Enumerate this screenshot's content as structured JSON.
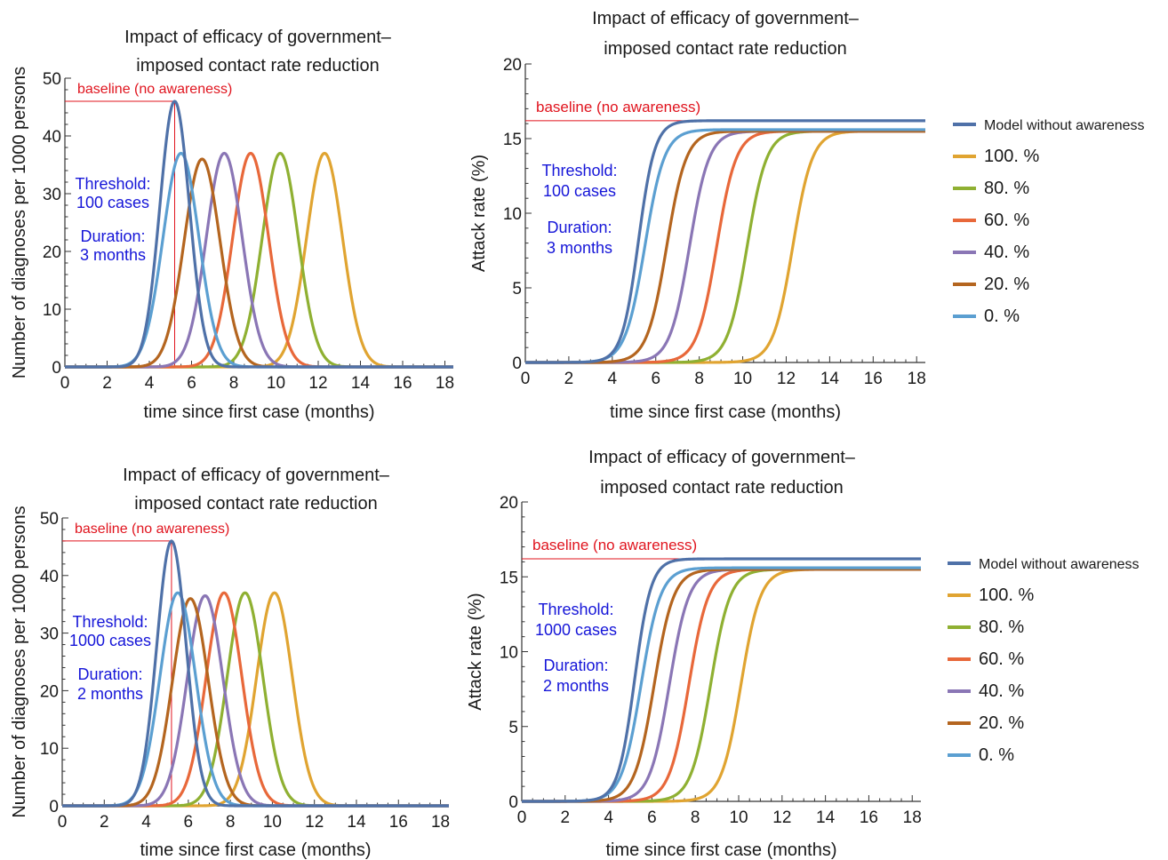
{
  "chart_data": [
    {
      "type": "line",
      "panel": "top-left",
      "title": [
        "Impact of efficacy of government–",
        "imposed contact rate reduction"
      ],
      "xlabel": "time since first case (months)",
      "ylabel": "Number of diagnoses per 1000 persons",
      "xlim": [
        0,
        18.4
      ],
      "ylim": [
        0,
        50
      ],
      "xticks": [
        "0",
        "2",
        "4",
        "6",
        "8",
        "10",
        "12",
        "14",
        "16",
        "18"
      ],
      "yticks": [
        "0",
        "10",
        "20",
        "30",
        "40",
        "50"
      ],
      "threshold_text": [
        "Threshold:",
        "100 cases"
      ],
      "duration_text": [
        "Duration:",
        "3 months"
      ],
      "baseline": {
        "label": "baseline (no awareness)",
        "peak_x": 5.2,
        "peak_y": 46
      },
      "series": [
        {
          "name": "100. %",
          "color": "#e0a431",
          "shape": "bell",
          "peak_x": 12.3,
          "peak_y": 37,
          "width": 0.85
        },
        {
          "name": "80. %",
          "color": "#8fb032",
          "shape": "bell",
          "peak_x": 10.2,
          "peak_y": 37,
          "width": 0.85
        },
        {
          "name": "60. %",
          "color": "#e8683a",
          "shape": "bell",
          "peak_x": 8.8,
          "peak_y": 37,
          "width": 0.85
        },
        {
          "name": "40. %",
          "color": "#8a76b5",
          "shape": "bell",
          "peak_x": 7.55,
          "peak_y": 37,
          "width": 0.85
        },
        {
          "name": "20. %",
          "color": "#b4651f",
          "shape": "bell",
          "peak_x": 6.5,
          "peak_y": 36,
          "width": 0.85
        },
        {
          "name": "0. %",
          "color": "#5b9fd1",
          "shape": "bell",
          "peak_x": 5.5,
          "peak_y": 37,
          "width": 0.85
        },
        {
          "name": "Model without awareness",
          "color": "#4f71a8",
          "shape": "bell",
          "peak_x": 5.2,
          "peak_y": 46,
          "width": 0.7
        }
      ]
    },
    {
      "type": "line",
      "panel": "top-right",
      "title": [
        "Impact of efficacy of government–",
        "imposed contact rate reduction"
      ],
      "xlabel": "time since first case (months)",
      "ylabel": "Attack rate (%)",
      "xlim": [
        0,
        18.4
      ],
      "ylim": [
        0,
        20
      ],
      "xticks": [
        "0",
        "2",
        "4",
        "6",
        "8",
        "10",
        "12",
        "14",
        "16",
        "18"
      ],
      "yticks": [
        "0",
        "5",
        "10",
        "15",
        "20"
      ],
      "threshold_text": [
        "Threshold:",
        "100 cases"
      ],
      "duration_text": [
        "Duration:",
        "3 months"
      ],
      "baseline": {
        "label": "baseline (no awareness)",
        "y": 16.2
      },
      "series": [
        {
          "name": "100. %",
          "color": "#e0a431",
          "shape": "sigmoid",
          "mid_x": 12.3,
          "final": 15.5,
          "scale": 0.45
        },
        {
          "name": "80. %",
          "color": "#8fb032",
          "shape": "sigmoid",
          "mid_x": 10.2,
          "final": 15.5,
          "scale": 0.45
        },
        {
          "name": "60. %",
          "color": "#e8683a",
          "shape": "sigmoid",
          "mid_x": 8.8,
          "final": 15.5,
          "scale": 0.45
        },
        {
          "name": "40. %",
          "color": "#8a76b5",
          "shape": "sigmoid",
          "mid_x": 7.55,
          "final": 15.5,
          "scale": 0.45
        },
        {
          "name": "20. %",
          "color": "#b4651f",
          "shape": "sigmoid",
          "mid_x": 6.5,
          "final": 15.5,
          "scale": 0.45
        },
        {
          "name": "0. %",
          "color": "#5b9fd1",
          "shape": "sigmoid",
          "mid_x": 5.5,
          "final": 15.6,
          "scale": 0.45
        },
        {
          "name": "Model without awareness",
          "color": "#4f71a8",
          "shape": "sigmoid",
          "mid_x": 5.2,
          "final": 16.2,
          "scale": 0.38
        }
      ],
      "legend": [
        "Model without awareness",
        "100. %",
        "80. %",
        "60. %",
        "40. %",
        "20. %",
        "0. %"
      ]
    },
    {
      "type": "line",
      "panel": "bottom-left",
      "title": [
        "Impact of efficacy of government–",
        "imposed contact rate reduction"
      ],
      "xlabel": "time since first case (months)",
      "ylabel": "Number of diagnoses per 1000 persons",
      "xlim": [
        0,
        18.4
      ],
      "ylim": [
        0,
        50
      ],
      "xticks": [
        "0",
        "2",
        "4",
        "6",
        "8",
        "10",
        "12",
        "14",
        "16",
        "18"
      ],
      "yticks": [
        "0",
        "10",
        "20",
        "30",
        "40",
        "50"
      ],
      "threshold_text": [
        "Threshold:",
        "1000 cases"
      ],
      "duration_text": [
        "Duration:",
        "2 months"
      ],
      "baseline": {
        "label": "baseline (no awareness)",
        "peak_x": 5.2,
        "peak_y": 46
      },
      "series": [
        {
          "name": "100. %",
          "color": "#e0a431",
          "shape": "bell",
          "peak_x": 10.1,
          "peak_y": 37,
          "width": 0.85
        },
        {
          "name": "80. %",
          "color": "#8fb032",
          "shape": "bell",
          "peak_x": 8.7,
          "peak_y": 37,
          "width": 0.85
        },
        {
          "name": "60. %",
          "color": "#e8683a",
          "shape": "bell",
          "peak_x": 7.7,
          "peak_y": 37,
          "width": 0.85
        },
        {
          "name": "40. %",
          "color": "#8a76b5",
          "shape": "bell",
          "peak_x": 6.8,
          "peak_y": 36.5,
          "width": 0.85
        },
        {
          "name": "20. %",
          "color": "#b4651f",
          "shape": "bell",
          "peak_x": 6.1,
          "peak_y": 36,
          "width": 0.85
        },
        {
          "name": "0. %",
          "color": "#5b9fd1",
          "shape": "bell",
          "peak_x": 5.5,
          "peak_y": 37,
          "width": 0.85
        },
        {
          "name": "Model without awareness",
          "color": "#4f71a8",
          "shape": "bell",
          "peak_x": 5.2,
          "peak_y": 46,
          "width": 0.7
        }
      ]
    },
    {
      "type": "line",
      "panel": "bottom-right",
      "title": [
        "Impact of efficacy of government–",
        "imposed contact rate reduction"
      ],
      "xlabel": "time since first case (months)",
      "ylabel": "Attack rate (%)",
      "xlim": [
        0,
        18.4
      ],
      "ylim": [
        0,
        20
      ],
      "xticks": [
        "0",
        "2",
        "4",
        "6",
        "8",
        "10",
        "12",
        "14",
        "16",
        "18"
      ],
      "yticks": [
        "0",
        "5",
        "10",
        "15",
        "20"
      ],
      "threshold_text": [
        "Threshold:",
        "1000 cases"
      ],
      "duration_text": [
        "Duration:",
        "2 months"
      ],
      "baseline": {
        "label": "baseline (no awareness)",
        "y": 16.2
      },
      "series": [
        {
          "name": "100. %",
          "color": "#e0a431",
          "shape": "sigmoid",
          "mid_x": 10.1,
          "final": 15.5,
          "scale": 0.45
        },
        {
          "name": "80. %",
          "color": "#8fb032",
          "shape": "sigmoid",
          "mid_x": 8.7,
          "final": 15.5,
          "scale": 0.45
        },
        {
          "name": "60. %",
          "color": "#e8683a",
          "shape": "sigmoid",
          "mid_x": 7.7,
          "final": 15.5,
          "scale": 0.45
        },
        {
          "name": "40. %",
          "color": "#8a76b5",
          "shape": "sigmoid",
          "mid_x": 6.8,
          "final": 15.5,
          "scale": 0.45
        },
        {
          "name": "20. %",
          "color": "#b4651f",
          "shape": "sigmoid",
          "mid_x": 6.1,
          "final": 15.5,
          "scale": 0.45
        },
        {
          "name": "0. %",
          "color": "#5b9fd1",
          "shape": "sigmoid",
          "mid_x": 5.5,
          "final": 15.6,
          "scale": 0.45
        },
        {
          "name": "Model without awareness",
          "color": "#4f71a8",
          "shape": "sigmoid",
          "mid_x": 5.2,
          "final": 16.2,
          "scale": 0.38
        }
      ],
      "legend": [
        "Model without awareness",
        "100. %",
        "80. %",
        "60. %",
        "40. %",
        "20. %",
        "0. %"
      ]
    }
  ]
}
